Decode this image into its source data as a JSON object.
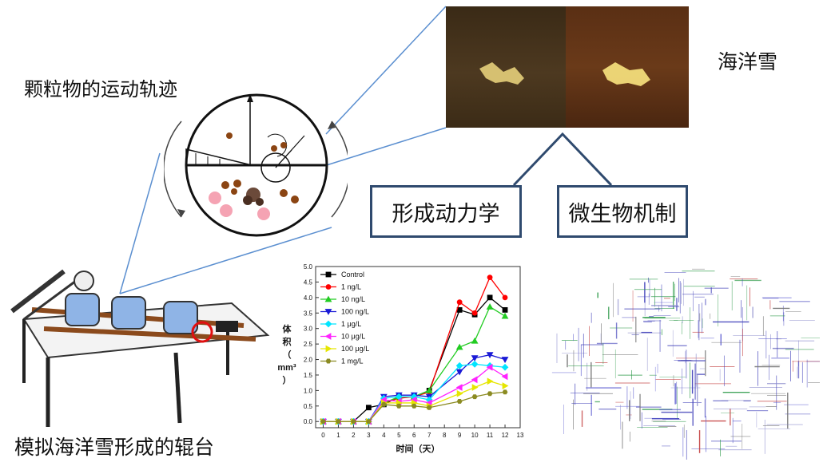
{
  "labels": {
    "particle_trajectory": "颗粒物的运动轨迹",
    "marine_snow": "海洋雪",
    "formation_dynamics": "形成动力学",
    "microbial_mechanism": "微生物机制",
    "roller_table": "模拟海洋雪形成的辊台"
  },
  "colors": {
    "box_border": "#2f4a6e",
    "connector_line": "#5b8fd0",
    "photo_left": "#4d3920",
    "photo_right": "#6a3a19"
  },
  "chart_data": {
    "type": "line",
    "x": [
      0,
      1,
      2,
      3,
      4,
      5,
      6,
      7,
      9,
      10,
      11,
      12
    ],
    "xticks": [
      "0",
      "1",
      "2",
      "3",
      "4",
      "5",
      "6",
      "7",
      "8",
      "9",
      "10",
      "11",
      "12",
      "13"
    ],
    "yticks": [
      "0.0",
      "0.5",
      "1.0",
      "1.5",
      "2.0",
      "2.5",
      "3.0",
      "3.5",
      "4.0",
      "4.5",
      "5.0"
    ],
    "xlim": [
      -0.5,
      13
    ],
    "ylim": [
      -0.2,
      5.0
    ],
    "xlabel": "时间（天）",
    "ylabel": "体积（mm³）",
    "ylabel_lines": [
      "体",
      "积",
      "（",
      "mm³",
      "）"
    ],
    "legend_position": "top-left",
    "series": [
      {
        "name": "Control",
        "color": "#000000",
        "marker": "square",
        "values": [
          0,
          0,
          0,
          0.45,
          0.55,
          0.8,
          0.8,
          1.0,
          3.6,
          3.45,
          4.0,
          3.6
        ]
      },
      {
        "name": "1 ng/L",
        "color": "#ff0000",
        "marker": "circle",
        "values": [
          0,
          0,
          0,
          0,
          0.6,
          0.75,
          0.8,
          0.95,
          3.85,
          3.5,
          4.65,
          4.0
        ]
      },
      {
        "name": "10 ng/L",
        "color": "#22cc22",
        "marker": "triangle-up",
        "values": [
          0,
          0,
          0,
          0,
          0.6,
          0.8,
          0.8,
          1.0,
          2.4,
          2.6,
          3.7,
          3.4
        ]
      },
      {
        "name": "100 ng/L",
        "color": "#1a1ad6",
        "marker": "triangle-down",
        "values": [
          0,
          0,
          0,
          0,
          0.8,
          0.85,
          0.85,
          0.8,
          1.6,
          2.05,
          2.15,
          2.0
        ]
      },
      {
        "name": "1 μg/L",
        "color": "#00e5ff",
        "marker": "diamond",
        "values": [
          0,
          0,
          0,
          0,
          0.75,
          0.8,
          0.8,
          0.7,
          1.8,
          1.85,
          1.8,
          1.75
        ]
      },
      {
        "name": "10 μg/L",
        "color": "#ff22ff",
        "marker": "triangle-left",
        "values": [
          0,
          0,
          0,
          0,
          0.7,
          0.65,
          0.7,
          0.6,
          1.1,
          1.35,
          1.75,
          1.45
        ]
      },
      {
        "name": "100 μg/L",
        "color": "#e6e600",
        "marker": "triangle-right",
        "values": [
          0,
          0,
          0,
          0,
          0.6,
          0.6,
          0.6,
          0.5,
          0.9,
          1.1,
          1.3,
          1.15
        ]
      },
      {
        "name": "1 mg/L",
        "color": "#8b8b22",
        "marker": "hexagon",
        "values": [
          0,
          0,
          0,
          0,
          0.55,
          0.5,
          0.5,
          0.45,
          0.65,
          0.8,
          0.9,
          0.95
        ]
      }
    ]
  }
}
